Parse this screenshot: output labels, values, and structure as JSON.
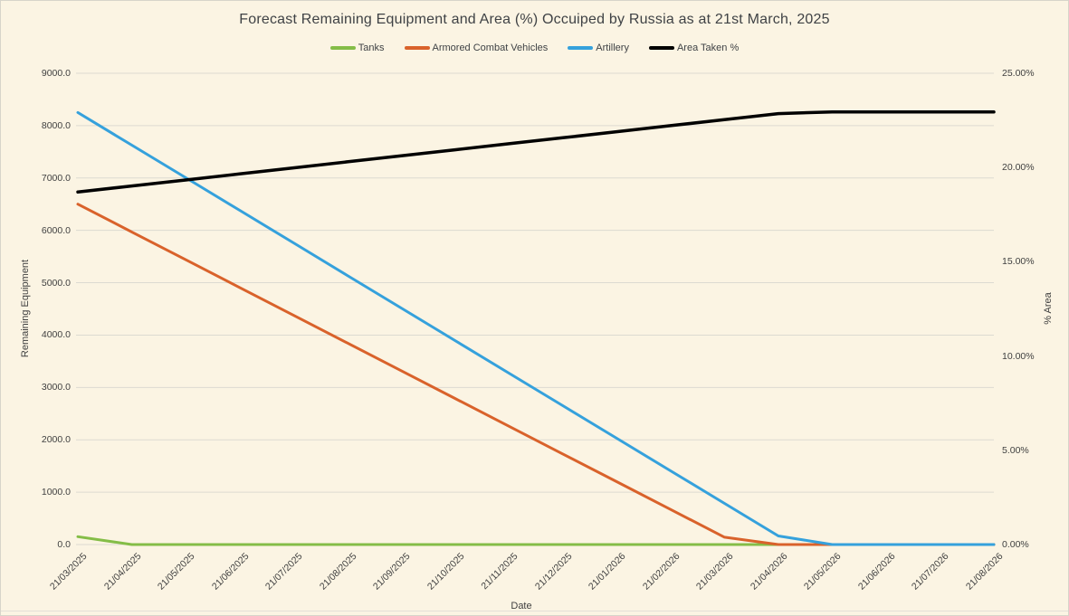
{
  "chart_data": {
    "type": "line",
    "title": "Forecast Remaining Equipment and Area (%) Occuiped by Russia as at 21st March, 2025",
    "legend_position": "top",
    "grid": "horizontal",
    "x_axis": {
      "title": "Date",
      "categories": [
        "21/03/2025",
        "21/04/2025",
        "21/05/2025",
        "21/06/2025",
        "21/07/2025",
        "21/08/2025",
        "21/09/2025",
        "21/10/2025",
        "21/11/2025",
        "21/12/2025",
        "21/01/2026",
        "21/02/2026",
        "21/03/2026",
        "21/04/2026",
        "21/05/2026",
        "21/06/2026",
        "21/07/2026",
        "21/08/2026"
      ]
    },
    "left_axis": {
      "title": "Remaining Equipment",
      "min": 0,
      "max": 9000,
      "step": 1000,
      "tick_labels": [
        "0.0",
        "1000.0",
        "2000.0",
        "3000.0",
        "4000.0",
        "5000.0",
        "6000.0",
        "7000.0",
        "8000.0",
        "9000.0"
      ]
    },
    "right_axis": {
      "title": "% Area",
      "min": 0,
      "max": 25,
      "step": 5,
      "tick_labels": [
        "0.00%",
        "5.00%",
        "10.00%",
        "15.00%",
        "20.00%",
        "25.00%"
      ]
    },
    "series": [
      {
        "name": "Tanks",
        "color": "#84bd47",
        "axis": "left",
        "values": [
          150,
          0,
          0,
          0,
          0,
          0,
          0,
          0,
          0,
          0,
          0,
          0,
          0,
          0,
          0,
          0,
          0,
          0
        ]
      },
      {
        "name": "Armored Combat Vehicles",
        "color": "#d9622b",
        "axis": "left",
        "values": [
          6500,
          5970,
          5440,
          4910,
          4380,
          3850,
          3320,
          2790,
          2260,
          1730,
          1200,
          670,
          140,
          0,
          0,
          0,
          0,
          0
        ]
      },
      {
        "name": "Artillery",
        "color": "#35a1dc",
        "axis": "left",
        "values": [
          8250,
          7628,
          7006,
          6384,
          5762,
          5140,
          4518,
          3896,
          3274,
          2652,
          2030,
          1408,
          786,
          164,
          0,
          0,
          0,
          0
        ]
      },
      {
        "name": "Area Taken %",
        "color": "#000000",
        "axis": "right",
        "values": [
          18.7,
          19.02,
          19.34,
          19.66,
          19.98,
          20.3,
          20.62,
          20.94,
          21.26,
          21.58,
          21.9,
          22.22,
          22.54,
          22.86,
          22.95,
          22.95,
          22.95,
          22.95
        ]
      }
    ]
  }
}
